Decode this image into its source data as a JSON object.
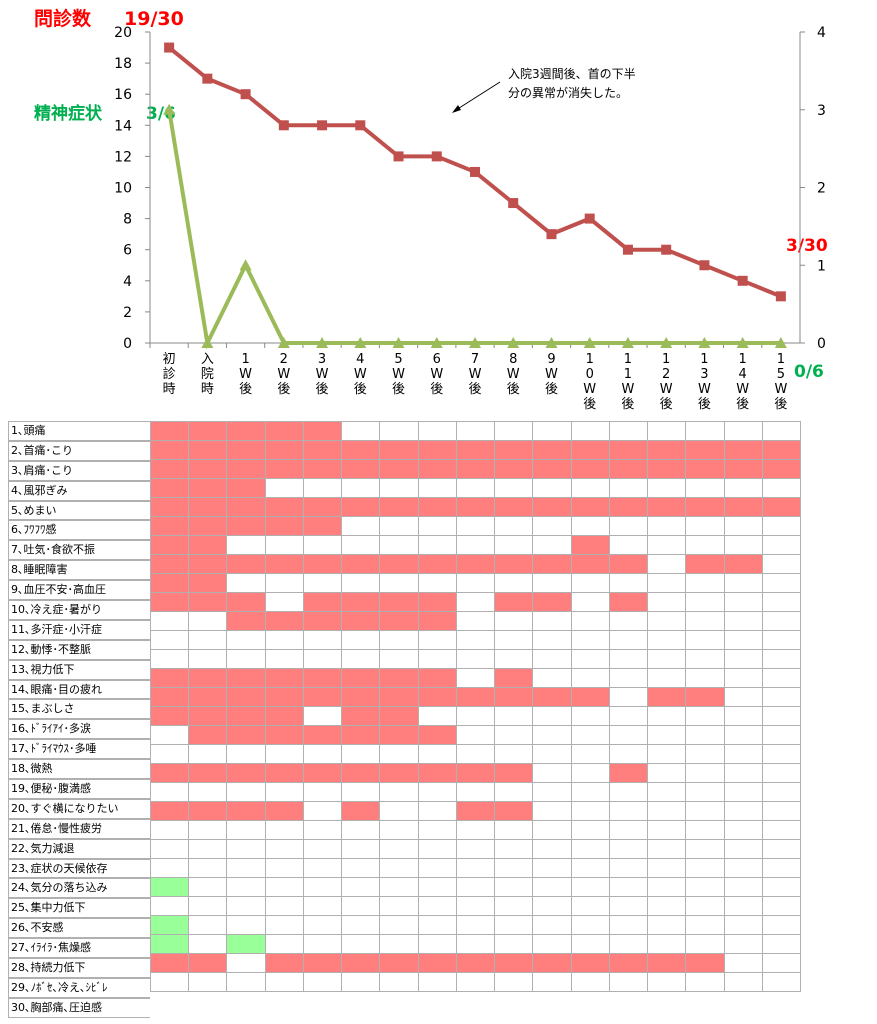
{
  "chart_data": {
    "type": "line",
    "categories": [
      [
        "初",
        "診",
        "時"
      ],
      [
        "入",
        "院",
        "時"
      ],
      [
        "1",
        "W",
        "後"
      ],
      [
        "2",
        "W",
        "後"
      ],
      [
        "3",
        "W",
        "後"
      ],
      [
        "4",
        "W",
        "後"
      ],
      [
        "5",
        "W",
        "後"
      ],
      [
        "6",
        "W",
        "後"
      ],
      [
        "7",
        "W",
        "後"
      ],
      [
        "8",
        "W",
        "後"
      ],
      [
        "9",
        "W",
        "後"
      ],
      [
        "1",
        "0",
        "W",
        "後"
      ],
      [
        "1",
        "1",
        "W",
        "後"
      ],
      [
        "1",
        "2",
        "W",
        "後"
      ],
      [
        "1",
        "3",
        "W",
        "後"
      ],
      [
        "1",
        "4",
        "W",
        "後"
      ],
      [
        "1",
        "5",
        "W",
        "後"
      ]
    ],
    "series": [
      {
        "name": "",
        "axis": "left",
        "color": "#c0504d",
        "marker": "square",
        "values": [
          19,
          17,
          16,
          14,
          14,
          14,
          12,
          12,
          11,
          9,
          7,
          8,
          6,
          6,
          5,
          4,
          3
        ]
      },
      {
        "name": "",
        "axis": "right",
        "color": "#9bbb59",
        "marker": "triangle",
        "values": [
          3,
          0,
          1,
          0,
          0,
          0,
          0,
          0,
          0,
          0,
          0,
          0,
          0,
          0,
          0,
          0,
          0
        ]
      }
    ],
    "yleft": {
      "min": 0,
      "max": 20,
      "ticks": [
        0,
        2,
        4,
        6,
        8,
        10,
        12,
        14,
        16,
        18,
        20
      ]
    },
    "yright": {
      "min": 0,
      "max": 4,
      "ticks": [
        0,
        1,
        2,
        3,
        4
      ]
    },
    "annotations": {
      "title_red": "問診数",
      "start_red": "19/30",
      "title_green": "精神症状",
      "start_green": "3/6",
      "end_red": "3/30",
      "end_green": "0/6",
      "note_line1": "入院3週間後、首の下半",
      "note_line2": "分の異常が消失した。"
    },
    "colors": {
      "red": "#ff0000",
      "green": "#00b050",
      "cell_red": "#ff7f7f",
      "cell_green": "#99ff99",
      "line_red": "#c0504d",
      "line_green": "#9bbb59"
    }
  },
  "symptom_table": {
    "labels": [
      "1､頭痛",
      "2､首痛･こり",
      "3､肩痛･こり",
      "4､風邪ぎみ",
      "5､めまい",
      "6､ﾌﾜﾌﾜ感",
      "7､吐気･食欲不振",
      "8､睡眠障害",
      "9､血圧不安･高血圧",
      "10､冷え症･暑がり",
      "11､多汗症･小汗症",
      "12､動悸･不整脈",
      "13､視力低下",
      "14､眼痛･目の疲れ",
      "15､まぶしさ",
      "16､ﾄﾞﾗｲｱｲ･多涙",
      "17､ﾄﾞﾗｲﾏｳｽ･多唾",
      "18､微熱",
      "19､便秘･腹満感",
      "20､すぐ横になりたい",
      "21､倦怠･慢性疲労",
      "22､気力減退",
      "23､症状の天候依存",
      "24､気分の落ち込み",
      "25､集中力低下",
      "26､不安感",
      "27､ｲﾗｲﾗ･焦燥感",
      "28､持続力低下",
      "29､ﾉﾎﾞｾ､冷え､ｼﾋﾞﾚ",
      "30､胸部痛､圧迫感"
    ],
    "rows": [
      "rrrrr000000000000",
      "rrrrrrrrrrrrrrrrr",
      "rrrrrrrrrrrrrrrrr",
      "rrr00000000000000",
      "rrrrrrrrrrrrrrrrr",
      "rrrrr000000000000",
      "rr000000000r00000",
      "rrrrrrrrrrrrr0rr0",
      "rr000000000000000",
      "rrr0rrrr0rr0r0000",
      "00rrrrrr000000000",
      "00000000000000000",
      "00000000000000000",
      "rrrrrrrr0r0000000",
      "rrrrrrrrrrrr0rr00",
      "rrrr0rr0000000000",
      "0rrrrrrr000000000",
      "00000000000000000",
      "rrrrrrrrrr00r0000",
      "00000000000000000",
      "rrrr0r00rr0000000",
      "00000000000000000",
      "00000000000000000",
      "00000000000000000",
      "g0000000000000000",
      "00000000000000000",
      "g0000000000000000",
      "g0g00000000000000",
      "rr0rrrrrrrrrrrr00",
      "00000000000000000"
    ]
  }
}
